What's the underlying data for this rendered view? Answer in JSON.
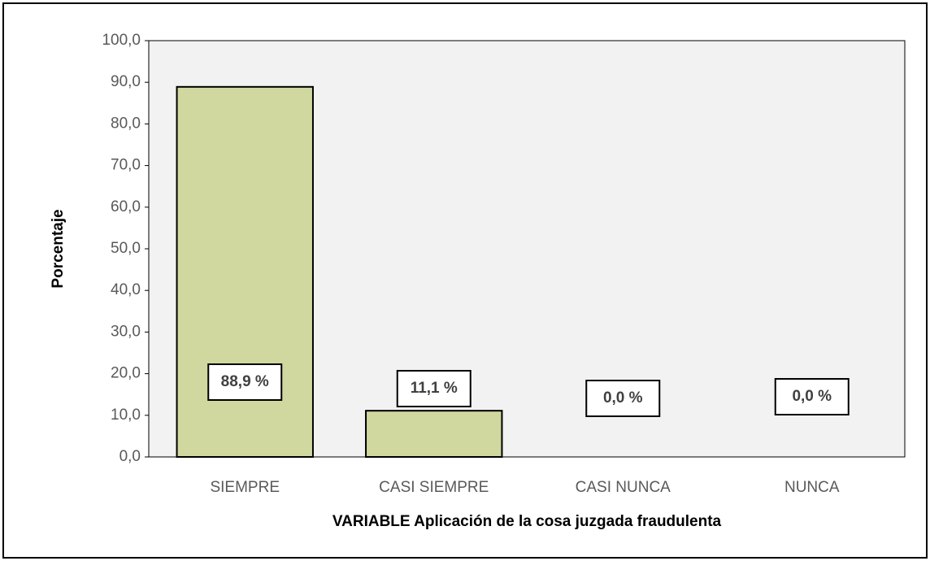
{
  "chart_data": {
    "type": "bar",
    "xlabel": "VARIABLE Aplicación de la cosa juzgada fraudulenta",
    "ylabel": "Porcentaje",
    "categories": [
      "SIEMPRE",
      "CASI SIEMPRE",
      "CASI NUNCA",
      "NUNCA"
    ],
    "values": [
      88.9,
      11.1,
      0,
      0
    ],
    "value_labels": [
      "88,9 %",
      "11,1 %",
      "0,0 %",
      "0,0 %"
    ],
    "color": "#d0d79f",
    "ylim": [
      0,
      100
    ],
    "yticks": [
      {
        "value": 0,
        "label": "0,0"
      },
      {
        "value": 10,
        "label": "10,0"
      },
      {
        "value": 20,
        "label": "20,0"
      },
      {
        "value": 30,
        "label": "30,0"
      },
      {
        "value": 40,
        "label": "40,0"
      },
      {
        "value": 50,
        "label": "50,0"
      },
      {
        "value": 60,
        "label": "60,0"
      },
      {
        "value": 70,
        "label": "70,0"
      },
      {
        "value": 80,
        "label": "80,0"
      },
      {
        "value": 90,
        "label": "90,0"
      },
      {
        "value": 100,
        "label": "100,0"
      }
    ]
  }
}
